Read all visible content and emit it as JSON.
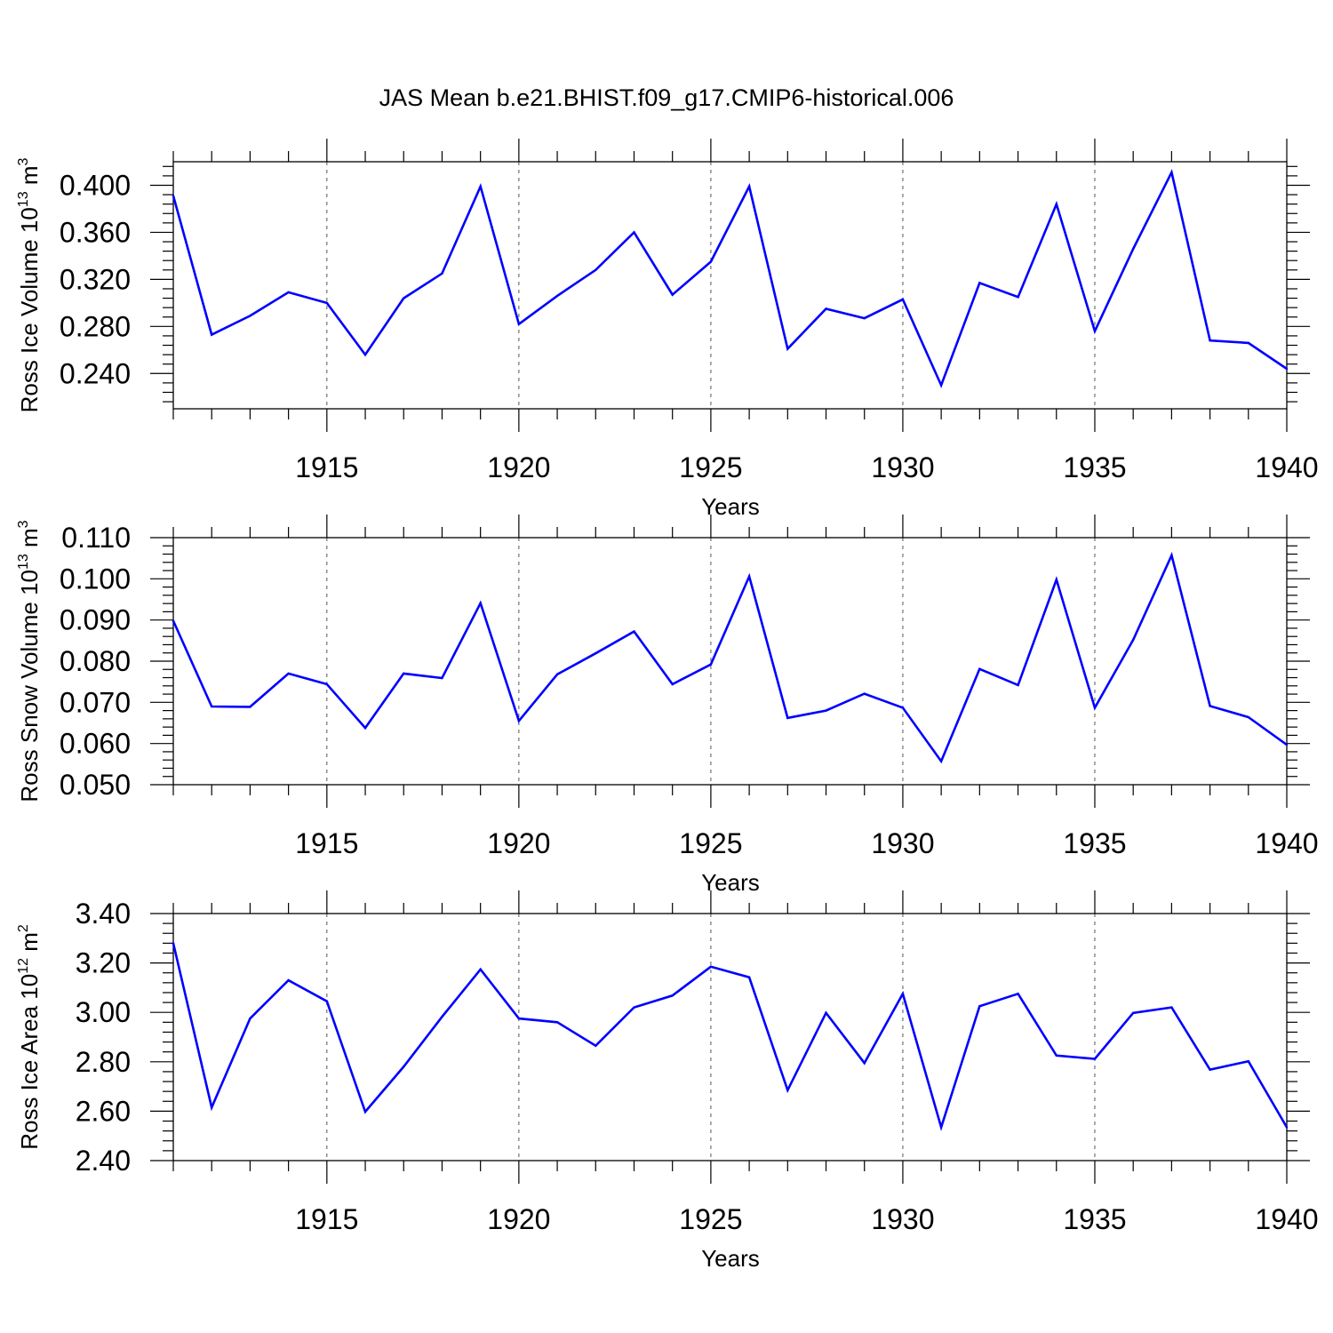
{
  "title": "JAS Mean b.e21.BHIST.f09_g17.CMIP6-historical.006",
  "colors": {
    "line": "#0000ff",
    "axis": "#000000",
    "grid": "#555555"
  },
  "chart_data": [
    {
      "type": "line",
      "xlabel": "Years",
      "ylabel": {
        "text": "Ross Ice Volume 10",
        "exp": "13",
        "unit": " m",
        "unit_exp": "3"
      },
      "xlim": [
        1911,
        1940
      ],
      "ylim": [
        0.21,
        0.42
      ],
      "x_ticks": [
        "1915",
        "1920",
        "1925",
        "1930",
        "1935",
        "1940"
      ],
      "y_ticks": [
        "0.240",
        "0.280",
        "0.320",
        "0.360",
        "0.400"
      ],
      "grid": "x-dashed",
      "x": [
        1911,
        1912,
        1913,
        1914,
        1915,
        1916,
        1917,
        1918,
        1919,
        1920,
        1921,
        1922,
        1923,
        1924,
        1925,
        1926,
        1927,
        1928,
        1929,
        1930,
        1931,
        1932,
        1933,
        1934,
        1935,
        1936,
        1937,
        1938,
        1939,
        1940
      ],
      "values": [
        0.391,
        0.273,
        0.289,
        0.309,
        0.3,
        0.256,
        0.304,
        0.325,
        0.399,
        0.282,
        0.306,
        0.328,
        0.36,
        0.307,
        0.335,
        0.399,
        0.261,
        0.295,
        0.287,
        0.303,
        0.23,
        0.317,
        0.305,
        0.384,
        0.276,
        0.346,
        0.411,
        0.268,
        0.266,
        0.244
      ]
    },
    {
      "type": "line",
      "xlabel": "Years",
      "ylabel": {
        "text": "Ross Snow Volume 10",
        "exp": "13",
        "unit": " m",
        "unit_exp": "3"
      },
      "xlim": [
        1911,
        1940
      ],
      "ylim": [
        0.05,
        0.11
      ],
      "x_ticks": [
        "1915",
        "1920",
        "1925",
        "1930",
        "1935",
        "1940"
      ],
      "y_ticks": [
        "0.050",
        "0.060",
        "0.070",
        "0.080",
        "0.090",
        "0.100",
        "0.110"
      ],
      "grid": "x-dashed",
      "x": [
        1911,
        1912,
        1913,
        1914,
        1915,
        1916,
        1917,
        1918,
        1919,
        1920,
        1921,
        1922,
        1923,
        1924,
        1925,
        1926,
        1927,
        1928,
        1929,
        1930,
        1931,
        1932,
        1933,
        1934,
        1935,
        1936,
        1937,
        1938,
        1939,
        1940
      ],
      "values": [
        0.0898,
        0.069,
        0.0689,
        0.077,
        0.0744,
        0.0638,
        0.077,
        0.0759,
        0.0941,
        0.0655,
        0.0768,
        0.0819,
        0.0872,
        0.0744,
        0.0792,
        0.1006,
        0.0662,
        0.068,
        0.0721,
        0.0687,
        0.0557,
        0.0781,
        0.0742,
        0.0998,
        0.0687,
        0.0852,
        0.1057,
        0.0691,
        0.0664,
        0.0597
      ]
    },
    {
      "type": "line",
      "xlabel": "Years",
      "ylabel": {
        "text": "Ross Ice Area 10",
        "exp": "12",
        "unit": " m",
        "unit_exp": "2"
      },
      "xlim": [
        1911,
        1940
      ],
      "ylim": [
        2.4,
        3.4
      ],
      "x_ticks": [
        "1915",
        "1920",
        "1925",
        "1930",
        "1935",
        "1940"
      ],
      "y_ticks": [
        "2.40",
        "2.60",
        "2.80",
        "3.00",
        "3.20",
        "3.40"
      ],
      "grid": "x-dashed",
      "x": [
        1911,
        1912,
        1913,
        1914,
        1915,
        1916,
        1917,
        1918,
        1919,
        1920,
        1921,
        1922,
        1923,
        1924,
        1925,
        1926,
        1927,
        1928,
        1929,
        1930,
        1931,
        1932,
        1933,
        1934,
        1935,
        1936,
        1937,
        1938,
        1939,
        1940
      ],
      "values": [
        3.28,
        2.615,
        2.975,
        3.13,
        3.045,
        2.598,
        2.78,
        2.982,
        3.174,
        2.975,
        2.96,
        2.865,
        3.02,
        3.068,
        3.185,
        3.142,
        2.685,
        2.998,
        2.795,
        3.075,
        2.535,
        3.025,
        3.075,
        2.825,
        2.812,
        2.998,
        3.02,
        2.768,
        2.802,
        2.535
      ]
    }
  ]
}
